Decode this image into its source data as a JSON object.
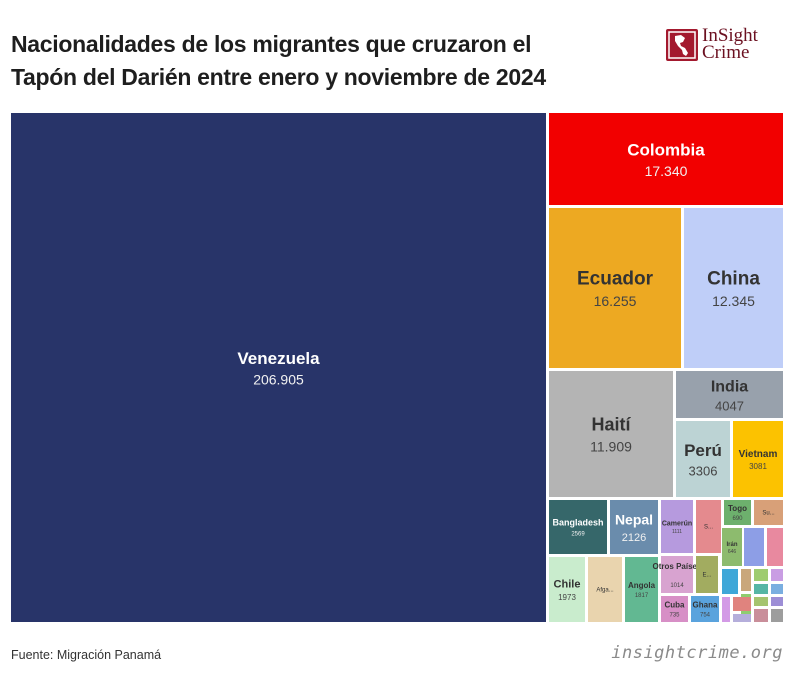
{
  "header": {
    "title_line1": "Nacionalidades de los migrantes que cruzaron el",
    "title_line2": "Tapón del Darién entre enero y noviembre de 2024"
  },
  "logo": {
    "line1": "InSight",
    "line2": "Crime",
    "icon": "americas-map-icon",
    "color": "#a3192e"
  },
  "footer": {
    "source": "Fuente: Migración Panamá",
    "site": "insightcrime.org"
  },
  "chart_data": {
    "type": "treemap",
    "title": "Nacionalidades de los migrantes que cruzaron el Tapón del Darién entre enero y noviembre de 2024",
    "items": [
      {
        "name": "Venezuela",
        "label": "Venezuela",
        "value_label": "206.905",
        "value": 206905,
        "color": "#283469"
      },
      {
        "name": "Colombia",
        "label": "Colombia",
        "value_label": "17.340",
        "value": 17340,
        "color": "#f20000"
      },
      {
        "name": "Ecuador",
        "label": "Ecuador",
        "value_label": "16.255",
        "value": 16255,
        "color": "#eda922"
      },
      {
        "name": "China",
        "label": "China",
        "value_label": "12.345",
        "value": 12345,
        "color": "#bfcef8"
      },
      {
        "name": "Haití",
        "label": "Haití",
        "value_label": "11.909",
        "value": 11909,
        "color": "#b4b4b4"
      },
      {
        "name": "India",
        "label": "India",
        "value_label": "4047",
        "value": 4047,
        "color": "#98a1ac"
      },
      {
        "name": "Perú",
        "label": "Perú",
        "value_label": "3306",
        "value": 3306,
        "color": "#bcd3d4"
      },
      {
        "name": "Vietnam",
        "label": "Vietnam",
        "value_label": "3081",
        "value": 3081,
        "color": "#fcc200"
      },
      {
        "name": "Bangladesh",
        "label": "Bangladesh",
        "value_label": "2569",
        "value": 2569,
        "color": "#36676a"
      },
      {
        "name": "Nepal",
        "label": "Nepal",
        "value_label": "2126",
        "value": 2126,
        "color": "#6a8cac"
      },
      {
        "name": "Chile",
        "label": "Chile",
        "value_label": "1973",
        "value": 1973,
        "color": "#c9eccd"
      },
      {
        "name": "Afga...",
        "label": "Afga...",
        "value_label": "",
        "value": null,
        "color": "#e9d4ae"
      },
      {
        "name": "Angola",
        "label": "Angola",
        "value_label": "1817",
        "value": 1817,
        "color": "#62b892"
      },
      {
        "name": "Camerún",
        "label": "Camerún",
        "value_label": "1111",
        "value": 1111,
        "color": "#b69ade"
      },
      {
        "name": "Otros Países",
        "label": "Otros Países",
        "value_label": "1014",
        "value": 1014,
        "color": "#d8a3d0"
      },
      {
        "name": "Cuba",
        "label": "Cuba",
        "value_label": "735",
        "value": 735,
        "color": "#d78fc6"
      },
      {
        "name": "Ghana",
        "label": "Ghana",
        "value_label": "754",
        "value": 754,
        "color": "#5aa3dd"
      },
      {
        "name": "Togo",
        "label": "Togo",
        "value_label": "690",
        "value": 690,
        "color": "#6db06d"
      },
      {
        "name": "Irán",
        "label": "Irán",
        "value_label": "646",
        "value": 646,
        "color": "#8dbb6e"
      },
      {
        "name": "Su...",
        "label": "Su...",
        "value_label": "",
        "value": null,
        "color": "#d8a078"
      },
      {
        "name": "E...",
        "label": "E...",
        "value_label": "",
        "value": null,
        "color": "#a2ac60"
      },
      {
        "name": "S...",
        "label": "S...",
        "value_label": "",
        "value": null,
        "color": "#e48a8e"
      }
    ],
    "small_tile_colors": [
      "#8d9ee6",
      "#e8899f",
      "#3fa7d8",
      "#c9a77b",
      "#9ecc6f",
      "#c99de3",
      "#56b6a5",
      "#7aaee0",
      "#8fcd6f",
      "#e0837e",
      "#b5aedb",
      "#a5c46f",
      "#9d8ed6",
      "#c98e9a",
      "#9d9d9d",
      "#d39ae6",
      "#4fc0a3",
      "#e79cc1",
      "#5fa66a",
      "#82c4b1"
    ]
  }
}
